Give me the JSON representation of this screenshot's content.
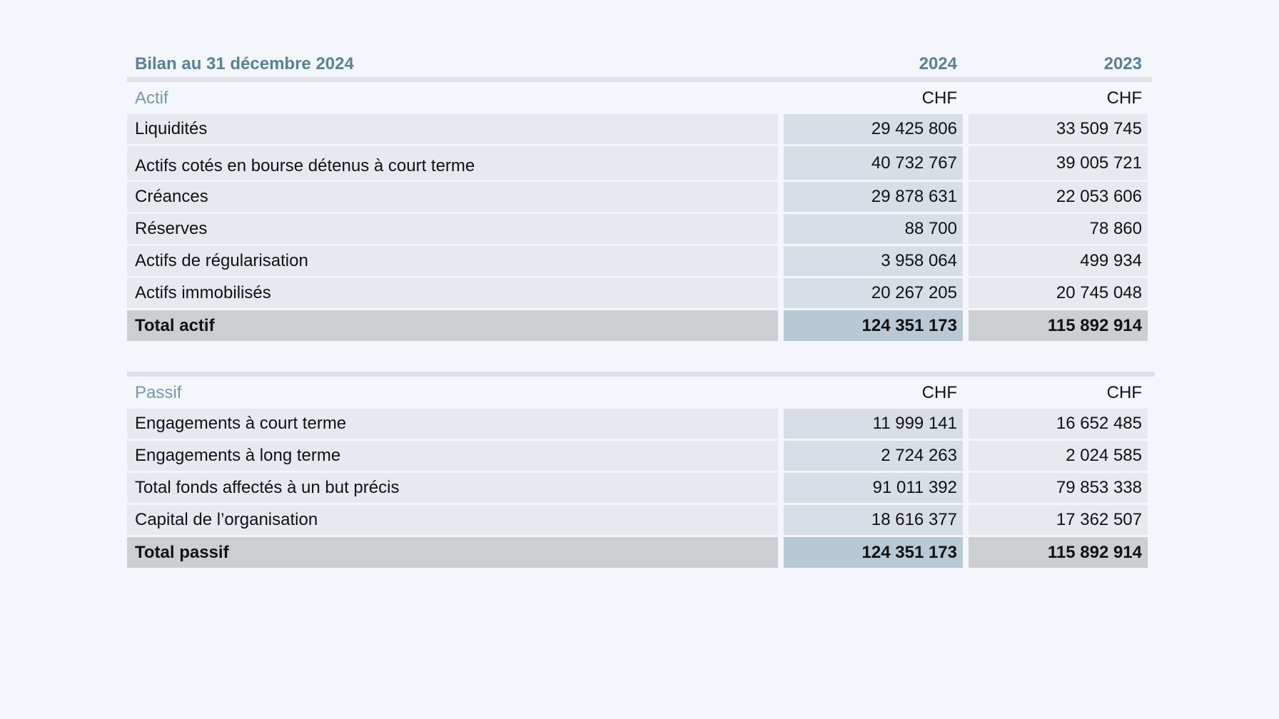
{
  "title": "Bilan au 31 décembre 2024",
  "years": [
    "2024",
    "2023"
  ],
  "currency": "CHF",
  "actif": {
    "label": "Actif",
    "rows": [
      {
        "label": "Liquidités",
        "y2024": "29 425 806",
        "y2023": "33 509 745"
      },
      {
        "label": "Actifs cotés en bourse détenus à court terme",
        "y2024": "40 732 767",
        "y2023": "39 005 721"
      },
      {
        "label": "Créances",
        "y2024": "29 878 631",
        "y2023": "22 053 606"
      },
      {
        "label": "Réserves",
        "y2024": "88 700",
        "y2023": "78 860"
      },
      {
        "label": "Actifs de régularisation",
        "y2024": "3 958 064",
        "y2023": "499 934"
      },
      {
        "label": "Actifs immobilisés",
        "y2024": "20 267 205",
        "y2023": "20 745 048"
      }
    ],
    "total": {
      "label": "Total actif",
      "y2024": "124 351 173",
      "y2023": "115 892 914"
    }
  },
  "passif": {
    "label": "Passif",
    "rows": [
      {
        "label": "Engagements à court terme",
        "y2024": "11 999 141",
        "y2023": "16 652 485"
      },
      {
        "label": "Engagements à long terme",
        "y2024": "2 724 263",
        "y2023": "2 024 585"
      },
      {
        "label": "Total fonds affectés à un but précis",
        "y2024": "91 011 392",
        "y2023": "79 853 338"
      },
      {
        "label": "Capital de l’organisation",
        "y2024": "18 616 377",
        "y2023": "17 362 507"
      }
    ],
    "total": {
      "label": "Total passif",
      "y2024": "124 351 173",
      "y2023": "115 892 914"
    }
  }
}
